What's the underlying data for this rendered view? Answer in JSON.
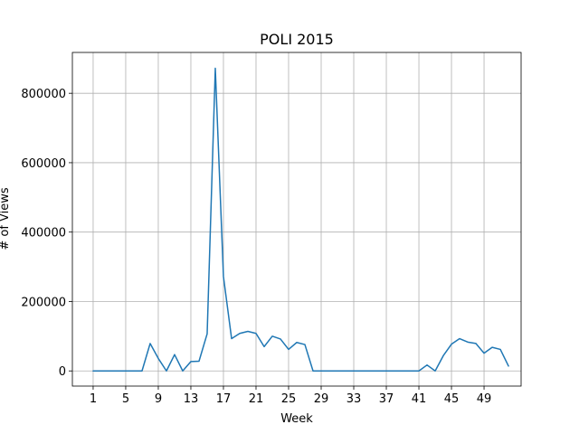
{
  "chart_data": {
    "type": "line",
    "title": "POLI 2015",
    "xlabel": "Week",
    "ylabel": "# of Views",
    "xlim": [
      -1.55,
      53.55
    ],
    "ylim": [
      -43700,
      917700
    ],
    "x_ticks": [
      1,
      5,
      9,
      13,
      17,
      21,
      25,
      29,
      33,
      37,
      41,
      45,
      49
    ],
    "x_tick_labels": [
      "1",
      "5",
      "9",
      "13",
      "17",
      "21",
      "25",
      "29",
      "33",
      "37",
      "41",
      "45",
      "49"
    ],
    "y_ticks": [
      0,
      200000,
      400000,
      600000,
      800000
    ],
    "y_tick_labels": [
      "0",
      "200000",
      "400000",
      "600000",
      "800000"
    ],
    "grid": true,
    "legend": "none",
    "series": [
      {
        "color": "#1f77b4",
        "x": [
          1,
          2,
          3,
          4,
          5,
          6,
          7,
          8,
          9,
          10,
          11,
          12,
          13,
          14,
          15,
          16,
          17,
          18,
          19,
          20,
          21,
          22,
          23,
          24,
          25,
          26,
          27,
          28,
          29,
          30,
          31,
          32,
          33,
          34,
          35,
          36,
          37,
          38,
          39,
          40,
          41,
          42,
          43,
          44,
          45,
          46,
          47,
          48,
          49,
          50,
          51,
          52
        ],
        "values": [
          0,
          0,
          0,
          0,
          0,
          0,
          0,
          79000,
          36000,
          0,
          47000,
          0,
          27000,
          28000,
          107000,
          872000,
          272000,
          93000,
          108000,
          114000,
          108000,
          70000,
          100000,
          92000,
          62000,
          82000,
          76000,
          0,
          0,
          0,
          0,
          0,
          0,
          0,
          0,
          0,
          0,
          0,
          0,
          0,
          0,
          17000,
          0,
          44000,
          77000,
          93000,
          83000,
          79000,
          51000,
          68000,
          62000,
          14000
        ]
      }
    ]
  }
}
